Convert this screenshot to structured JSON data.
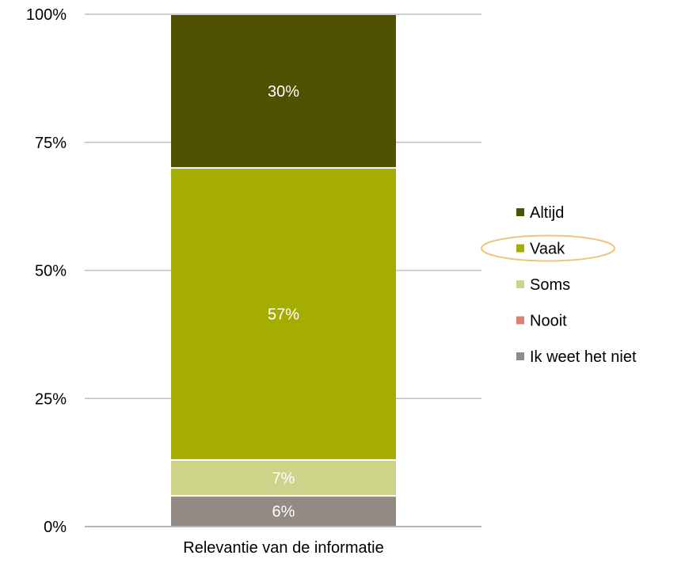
{
  "chart_data": {
    "type": "bar",
    "stacked": true,
    "normalized_percent": true,
    "categories": [
      "Relevantie van de informatie"
    ],
    "series": [
      {
        "name": "Ik weet het niet",
        "values": [
          6
        ],
        "color": "#948a84",
        "label": "6%"
      },
      {
        "name": "Nooit",
        "values": [
          0
        ],
        "color": "#d9826e",
        "label": ""
      },
      {
        "name": "Soms",
        "values": [
          7
        ],
        "color": "#cdd48a",
        "label": "7%"
      },
      {
        "name": "Vaak",
        "values": [
          57
        ],
        "color": "#a4ad00",
        "label": "57%"
      },
      {
        "name": "Altijd",
        "values": [
          30
        ],
        "color": "#4f5100",
        "label": "30%"
      }
    ],
    "y_ticks": [
      "0%",
      "25%",
      "50%",
      "75%",
      "100%"
    ],
    "ylim": [
      0,
      100
    ],
    "grid": true,
    "legend_position": "right",
    "legend_order": [
      "Altijd",
      "Vaak",
      "Soms",
      "Nooit",
      "Ik weet het niet"
    ],
    "highlighted_legend_entry": "Vaak",
    "highlight_color": "#f0c27a"
  }
}
